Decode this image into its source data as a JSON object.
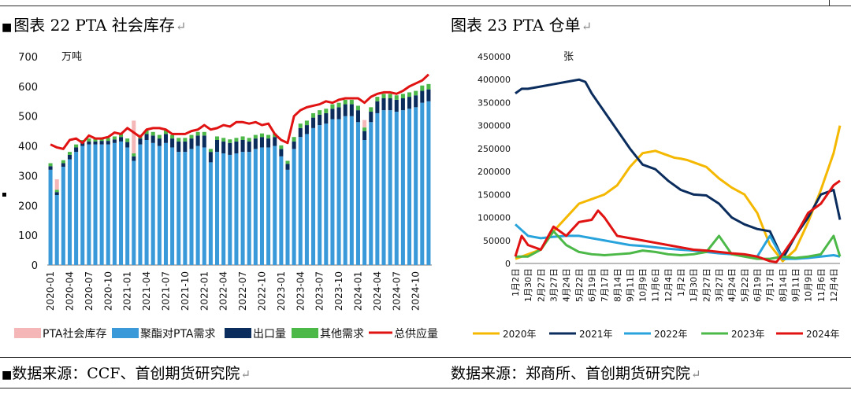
{
  "left_caption": {
    "prefix": "图表",
    "number": "22",
    "title": "PTA 社会库存",
    "return_mark": "↵"
  },
  "right_caption": {
    "prefix": "图表",
    "number": "23",
    "title": "PTA 仓单",
    "return_mark": "↵"
  },
  "left_source": {
    "text": "数据来源：CCF、首创期货研究院",
    "return_mark": "↵"
  },
  "right_source": {
    "text": "数据来源：郑商所、首创期货研究院",
    "return_mark": "↵"
  },
  "chart_data": [
    {
      "type": "bar",
      "title": "",
      "unit_label": "万吨",
      "ylim": [
        0,
        700
      ],
      "yticks": [
        0,
        100,
        200,
        300,
        400,
        500,
        600,
        700
      ],
      "x_tick_labels": [
        "2020-01",
        "2020-04",
        "2020-07",
        "2020-10",
        "2021-01",
        "2021-04",
        "2021-07",
        "2021-10",
        "2022-01",
        "2022-04",
        "2022-07",
        "2022-10",
        "2023-01",
        "2023-04",
        "2023-07",
        "2023-10",
        "2024-01",
        "2024-04",
        "2024-07",
        "2024-10"
      ],
      "legend": [
        "PTA社会库存",
        "聚酯对PTA需求",
        "出口量",
        "其他需求",
        "总供应量"
      ],
      "legend_position": "bottom",
      "colors": {
        "PTA社会库存": "#f4b6b6",
        "聚酯对PTA需求": "#3a9ad9",
        "出口量": "#0b2d5e",
        "其他需求": "#4cb848",
        "总供应量": "#e01212"
      },
      "months": [
        "2020-01",
        "2020-02",
        "2020-03",
        "2020-04",
        "2020-05",
        "2020-06",
        "2020-07",
        "2020-08",
        "2020-09",
        "2020-10",
        "2020-11",
        "2020-12",
        "2021-01",
        "2021-02",
        "2021-03",
        "2021-04",
        "2021-05",
        "2021-06",
        "2021-07",
        "2021-08",
        "2021-09",
        "2021-10",
        "2021-11",
        "2021-12",
        "2022-01",
        "2022-02",
        "2022-03",
        "2022-04",
        "2022-05",
        "2022-06",
        "2022-07",
        "2022-08",
        "2022-09",
        "2022-10",
        "2022-11",
        "2022-12",
        "2023-01",
        "2023-02",
        "2023-03",
        "2023-04",
        "2023-05",
        "2023-06",
        "2023-07",
        "2023-08",
        "2023-09",
        "2023-10",
        "2023-11",
        "2023-12",
        "2024-01",
        "2024-02",
        "2024-03",
        "2024-04",
        "2024-05",
        "2024-06",
        "2024-07",
        "2024-08",
        "2024-09",
        "2024-10",
        "2024-11",
        "2024-12"
      ],
      "polyester_demand": [
        320,
        235,
        330,
        355,
        380,
        400,
        405,
        405,
        405,
        405,
        410,
        415,
        395,
        350,
        405,
        420,
        410,
        400,
        410,
        395,
        380,
        380,
        390,
        400,
        395,
        345,
        380,
        375,
        370,
        375,
        380,
        380,
        390,
        395,
        395,
        400,
        365,
        320,
        390,
        430,
        440,
        460,
        470,
        475,
        490,
        490,
        500,
        500,
        480,
        420,
        480,
        510,
        520,
        520,
        515,
        520,
        525,
        530,
        545,
        550
      ],
      "export": [
        12,
        10,
        12,
        15,
        15,
        10,
        10,
        10,
        12,
        12,
        12,
        15,
        18,
        15,
        20,
        20,
        25,
        25,
        30,
        30,
        35,
        35,
        35,
        35,
        40,
        35,
        40,
        40,
        40,
        40,
        40,
        35,
        35,
        35,
        30,
        30,
        25,
        20,
        25,
        30,
        30,
        35,
        35,
        35,
        35,
        40,
        40,
        40,
        40,
        30,
        35,
        40,
        40,
        40,
        40,
        40,
        40,
        40,
        40,
        40
      ],
      "other": [
        10,
        8,
        10,
        10,
        10,
        10,
        10,
        10,
        10,
        10,
        10,
        10,
        12,
        10,
        12,
        12,
        12,
        12,
        12,
        12,
        12,
        12,
        12,
        12,
        12,
        10,
        12,
        12,
        12,
        12,
        12,
        12,
        12,
        12,
        12,
        12,
        12,
        10,
        15,
        15,
        15,
        15,
        15,
        15,
        15,
        15,
        15,
        15,
        15,
        12,
        15,
        15,
        15,
        15,
        15,
        15,
        15,
        15,
        18,
        18
      ],
      "social_inventory": [
        0,
        35,
        0,
        0,
        0,
        0,
        0,
        0,
        0,
        0,
        0,
        0,
        0,
        110,
        0,
        0,
        0,
        0,
        0,
        0,
        0,
        0,
        0,
        0,
        0,
        0,
        0,
        0,
        0,
        0,
        0,
        0,
        0,
        0,
        0,
        0,
        0,
        0,
        0,
        0,
        0,
        0,
        0,
        0,
        0,
        0,
        0,
        0,
        0,
        25,
        0,
        0,
        0,
        0,
        0,
        0,
        0,
        0,
        0,
        0
      ],
      "total_supply": [
        405,
        395,
        390,
        420,
        425,
        410,
        435,
        425,
        425,
        430,
        445,
        440,
        460,
        445,
        430,
        455,
        460,
        460,
        455,
        440,
        440,
        440,
        450,
        455,
        470,
        455,
        460,
        470,
        465,
        480,
        480,
        475,
        480,
        470,
        475,
        440,
        420,
        410,
        500,
        520,
        530,
        535,
        540,
        550,
        545,
        555,
        560,
        560,
        560,
        545,
        565,
        575,
        580,
        580,
        575,
        585,
        600,
        610,
        620,
        640
      ]
    },
    {
      "type": "line",
      "title": "",
      "unit_label": "张",
      "ylim": [
        0,
        450000
      ],
      "yticks": [
        0,
        50000,
        100000,
        150000,
        200000,
        250000,
        300000,
        350000,
        400000,
        450000
      ],
      "x_tick_labels": [
        "1月2日",
        "1月16日",
        "1月30日",
        "2月13日",
        "2月27日",
        "3月13日",
        "3月27日",
        "4月10日",
        "4月24日",
        "5月8日",
        "5月22日",
        "6月5日",
        "6月19日",
        "7月3日",
        "7月17日",
        "7月31日",
        "8月14日",
        "8月28日",
        "9月11日",
        "9月25日",
        "10月9日",
        "10月23日",
        "11月6日",
        "11月20日",
        "12月4日",
        "12月18日",
        "1月2日",
        "1月16日",
        "1月30日",
        "2月13日",
        "2月27日",
        "3月13日",
        "3月27日",
        "4月10日",
        "4月24日",
        "5月8日",
        "5月22日",
        "6月5日",
        "6月19日",
        "7月3日",
        "7月17日",
        "7月31日",
        "8月14日",
        "8月28日",
        "9月11日",
        "9月25日",
        "10月9日",
        "10月23日",
        "11月6日",
        "11月20日",
        "12月4日",
        "12月18日"
      ],
      "legend_position": "bottom",
      "series": [
        {
          "name": "2020年",
          "color": "#f5b800",
          "x": [
            0,
            4,
            6,
            8,
            10,
            12,
            14,
            16,
            18,
            20,
            22,
            24,
            25,
            26,
            27,
            28,
            30,
            32,
            34,
            36,
            38,
            40,
            42,
            44,
            46,
            48,
            50,
            51
          ],
          "y": [
            10000,
            30000,
            70000,
            100000,
            130000,
            140000,
            150000,
            170000,
            210000,
            240000,
            245000,
            235000,
            230000,
            228000,
            225000,
            220000,
            210000,
            185000,
            165000,
            150000,
            110000,
            40000,
            5000,
            30000,
            90000,
            160000,
            240000,
            300000
          ]
        },
        {
          "name": "2021年",
          "color": "#0b2d5e",
          "x": [
            0,
            1,
            2,
            4,
            6,
            8,
            10,
            11,
            12,
            14,
            16,
            18,
            20,
            22,
            24,
            26,
            28,
            30,
            32,
            34,
            36,
            38,
            40,
            42,
            44,
            46,
            48,
            50,
            51
          ],
          "y": [
            370000,
            380000,
            380000,
            385000,
            390000,
            395000,
            400000,
            395000,
            370000,
            330000,
            290000,
            250000,
            215000,
            205000,
            180000,
            160000,
            150000,
            148000,
            130000,
            100000,
            85000,
            75000,
            70000,
            10000,
            60000,
            100000,
            150000,
            160000,
            95000
          ]
        },
        {
          "name": "2022年",
          "color": "#29a3dc",
          "x": [
            0,
            2,
            4,
            6,
            8,
            10,
            12,
            14,
            16,
            18,
            20,
            22,
            24,
            26,
            28,
            30,
            32,
            34,
            36,
            38,
            40,
            42,
            44,
            46,
            48,
            50,
            51
          ],
          "y": [
            85000,
            60000,
            55000,
            58000,
            60000,
            60000,
            55000,
            50000,
            45000,
            40000,
            38000,
            35000,
            32000,
            30000,
            28000,
            25000,
            22000,
            20000,
            18000,
            15000,
            60000,
            10000,
            10000,
            12000,
            15000,
            18000,
            15000
          ]
        },
        {
          "name": "2023年",
          "color": "#4cb848",
          "x": [
            0,
            2,
            4,
            6,
            8,
            10,
            12,
            14,
            16,
            18,
            20,
            22,
            24,
            26,
            28,
            30,
            32,
            34,
            36,
            38,
            40,
            42,
            44,
            46,
            48,
            50,
            51
          ],
          "y": [
            15000,
            15000,
            30000,
            70000,
            40000,
            25000,
            20000,
            18000,
            20000,
            22000,
            28000,
            25000,
            20000,
            18000,
            20000,
            25000,
            60000,
            20000,
            15000,
            10000,
            10000,
            15000,
            12000,
            15000,
            20000,
            60000,
            15000
          ]
        },
        {
          "name": "2024年",
          "color": "#e01212",
          "x": [
            0,
            1,
            2,
            4,
            6,
            8,
            10,
            12,
            13,
            14,
            15,
            16,
            18,
            20,
            22,
            24,
            26,
            28,
            30,
            32,
            34,
            36,
            38,
            40,
            41,
            42,
            44,
            46,
            48,
            50,
            51
          ],
          "y": [
            15000,
            60000,
            40000,
            30000,
            80000,
            60000,
            90000,
            95000,
            115000,
            100000,
            80000,
            60000,
            55000,
            50000,
            45000,
            40000,
            35000,
            30000,
            28000,
            25000,
            22000,
            20000,
            15000,
            5000,
            3000,
            20000,
            60000,
            110000,
            130000,
            170000,
            180000
          ]
        }
      ]
    }
  ]
}
